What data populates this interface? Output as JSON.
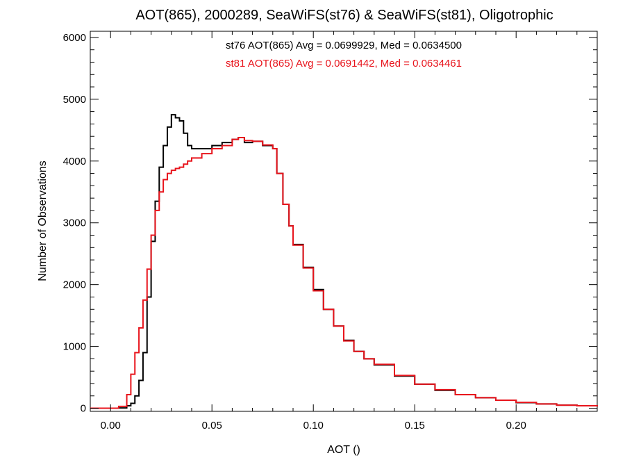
{
  "chart_data": {
    "type": "line",
    "title": "AOT(865), 2000289, SeaWiFS(st76) & SeaWiFS(st81), Oligotrophic",
    "xlabel": "AOT ()",
    "ylabel": "Number of Observations",
    "xlim": [
      -0.01,
      0.24
    ],
    "ylim": [
      -50,
      6100
    ],
    "xticks": [
      0.0,
      0.05,
      0.1,
      0.15,
      0.2
    ],
    "xtick_labels": [
      "0.00",
      "0.05",
      "0.10",
      "0.15",
      "0.20"
    ],
    "yticks": [
      0,
      1000,
      2000,
      3000,
      4000,
      5000,
      6000
    ],
    "ytick_labels": [
      "0",
      "1000",
      "2000",
      "3000",
      "4000",
      "5000",
      "6000"
    ],
    "grid": false,
    "step": true,
    "annotations": [
      {
        "text": "st76 AOT(865) Avg = 0.0699929, Med = 0.0634500",
        "color": "#000000"
      },
      {
        "text": "st81 AOT(865) Avg = 0.0691442, Med = 0.0634461",
        "color": "#e8141c"
      }
    ],
    "x": [
      -0.01,
      0.0,
      0.004,
      0.008,
      0.01,
      0.012,
      0.014,
      0.016,
      0.018,
      0.02,
      0.022,
      0.024,
      0.026,
      0.028,
      0.03,
      0.032,
      0.034,
      0.036,
      0.038,
      0.04,
      0.045,
      0.05,
      0.055,
      0.06,
      0.063,
      0.066,
      0.07,
      0.075,
      0.08,
      0.082,
      0.085,
      0.088,
      0.09,
      0.095,
      0.1,
      0.105,
      0.11,
      0.115,
      0.12,
      0.125,
      0.13,
      0.14,
      0.15,
      0.16,
      0.17,
      0.18,
      0.19,
      0.2,
      0.21,
      0.22,
      0.23,
      0.24
    ],
    "series": [
      {
        "color": "#000000",
        "values": [
          0,
          0,
          5,
          40,
          80,
          200,
          450,
          900,
          1800,
          2700,
          3350,
          3900,
          4250,
          4550,
          4750,
          4700,
          4650,
          4450,
          4250,
          4200,
          4200,
          4250,
          4300,
          4350,
          4380,
          4300,
          4320,
          4250,
          4200,
          3800,
          3300,
          2950,
          2650,
          2280,
          1920,
          1600,
          1330,
          1100,
          920,
          800,
          700,
          520,
          390,
          290,
          220,
          170,
          130,
          90,
          70,
          50,
          40,
          30
        ]
      },
      {
        "color": "#e8141c",
        "values": [
          0,
          0,
          30,
          220,
          550,
          900,
          1300,
          1750,
          2250,
          2800,
          3200,
          3500,
          3700,
          3800,
          3850,
          3880,
          3900,
          3950,
          4000,
          4050,
          4120,
          4200,
          4250,
          4350,
          4380,
          4330,
          4320,
          4260,
          4200,
          3800,
          3300,
          2950,
          2640,
          2270,
          1900,
          1600,
          1330,
          1090,
          920,
          800,
          710,
          530,
          390,
          300,
          220,
          170,
          130,
          95,
          70,
          50,
          40,
          30
        ]
      }
    ]
  }
}
